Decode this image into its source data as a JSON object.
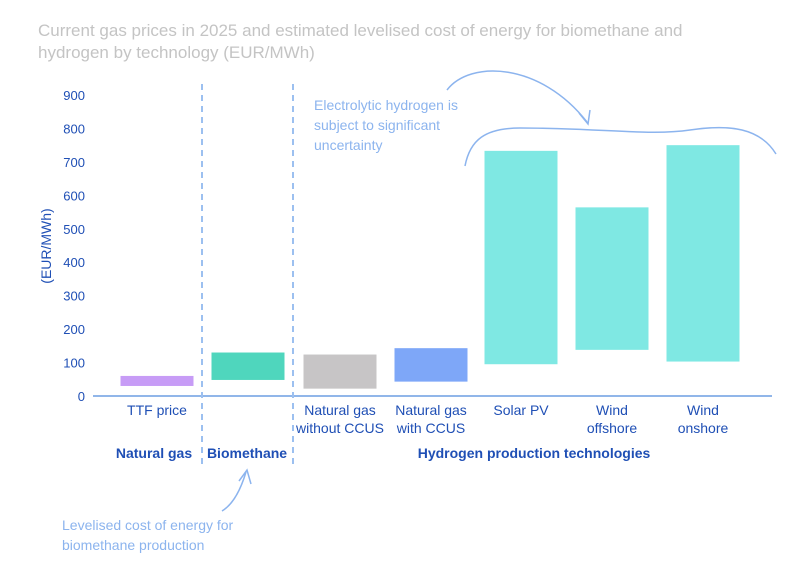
{
  "title": "Current gas prices in 2025 and estimated levelised cost of energy for biomethane and hydrogen by technology (EUR/MWh)",
  "chart_data": {
    "type": "bar",
    "subtype": "floating-range",
    "ylabel": "(EUR/MWh)",
    "ylim": [
      0,
      900
    ],
    "yticks": [
      0,
      100,
      200,
      300,
      400,
      500,
      600,
      700,
      800,
      900
    ],
    "grid": false,
    "categories": [
      {
        "lines": [
          "TTF price"
        ],
        "low": 30,
        "high": 60,
        "color": "#c79cf6"
      },
      {
        "lines": [
          ""
        ],
        "low": 48,
        "high": 130,
        "color": "#4fd6bd"
      },
      {
        "lines": [
          "Natural gas",
          "without CCUS"
        ],
        "low": 22,
        "high": 124,
        "color": "#c7c5c6"
      },
      {
        "lines": [
          "Natural gas",
          "with CCUS"
        ],
        "low": 43,
        "high": 143,
        "color": "#7ea7f8"
      },
      {
        "lines": [
          "Solar PV"
        ],
        "low": 95,
        "high": 733,
        "color": "#7fe8e3"
      },
      {
        "lines": [
          "Wind",
          "offshore"
        ],
        "low": 138,
        "high": 564,
        "color": "#7fe8e3"
      },
      {
        "lines": [
          "Wind",
          "onshore"
        ],
        "low": 103,
        "high": 750,
        "color": "#7fe8e3"
      }
    ],
    "groups": [
      "Natural gas",
      "Biomethane",
      "Hydrogen production technologies"
    ],
    "annotations": [
      {
        "lines": [
          "Electrolytic hydrogen is",
          "subject to significant",
          "uncertainty"
        ]
      },
      {
        "lines": [
          "Levelised cost of energy for",
          "biomethane production"
        ]
      }
    ]
  }
}
